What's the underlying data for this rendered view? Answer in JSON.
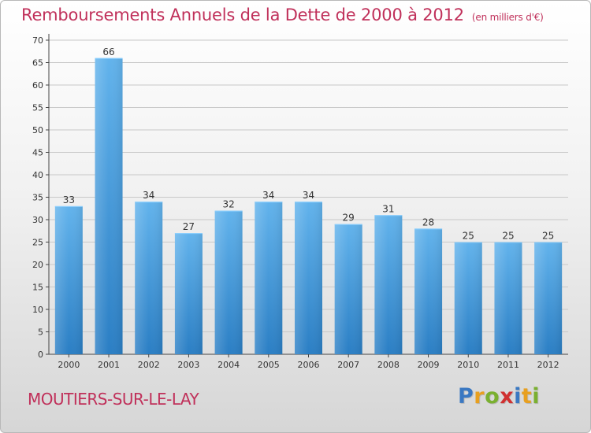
{
  "header": {
    "title": "Remboursements Annuels de la Dette de 2000 à 2012",
    "unit": "(en milliers d'€)"
  },
  "footer": {
    "city": "MOUTIERS-SUR-LE-LAY",
    "brand": "Proxiti",
    "brand_letters": [
      {
        "char": "P",
        "color": "#3a78c2"
      },
      {
        "char": "r",
        "color": "#e8a020"
      },
      {
        "char": "o",
        "color": "#7ab030"
      },
      {
        "char": "x",
        "color": "#d03030"
      },
      {
        "char": "i",
        "color": "#3a78c2"
      },
      {
        "char": "t",
        "color": "#e8a020"
      },
      {
        "char": "i",
        "color": "#7ab030"
      }
    ]
  },
  "colors": {
    "title": "#c0305a",
    "bar_top": "#62b3ec",
    "bar_bottom": "#2a7ec4",
    "grid": "#c8c8c8"
  },
  "chart_data": {
    "type": "bar",
    "title": "Remboursements Annuels de la Dette de 2000 à 2012",
    "subtitle": "(en milliers d'€)",
    "xlabel": "",
    "ylabel": "",
    "categories": [
      "2000",
      "2001",
      "2002",
      "2003",
      "2004",
      "2005",
      "2006",
      "2007",
      "2008",
      "2009",
      "2010",
      "2011",
      "2012"
    ],
    "values": [
      33,
      66,
      34,
      27,
      32,
      34,
      34,
      29,
      31,
      28,
      25,
      25,
      25
    ],
    "ylim": [
      0,
      70
    ],
    "yticks": [
      0,
      5,
      10,
      15,
      20,
      25,
      30,
      35,
      40,
      45,
      50,
      55,
      60,
      65,
      70
    ],
    "grid": true,
    "data_labels": true
  }
}
